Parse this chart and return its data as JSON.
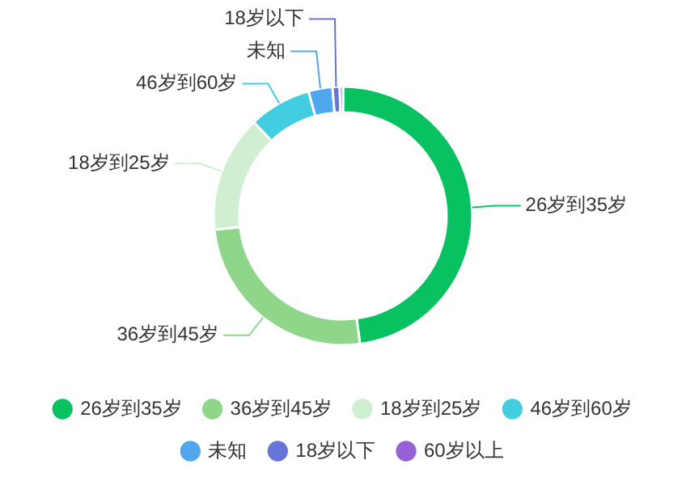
{
  "chart_data": {
    "type": "donut",
    "categories": [
      "26岁到35岁",
      "36岁到45岁",
      "18岁到25岁",
      "46岁到60岁",
      "未知",
      "18岁以下",
      "60岁以上"
    ],
    "values": [
      47.9,
      25.4,
      14.6,
      7.8,
      3.0,
      0.9,
      0.4
    ],
    "colors": [
      "#08c160",
      "#8fd68b",
      "#d0efd2",
      "#42cde1",
      "#4ea7ef",
      "#6574d6",
      "#9661d4"
    ],
    "legend": "bottom"
  }
}
